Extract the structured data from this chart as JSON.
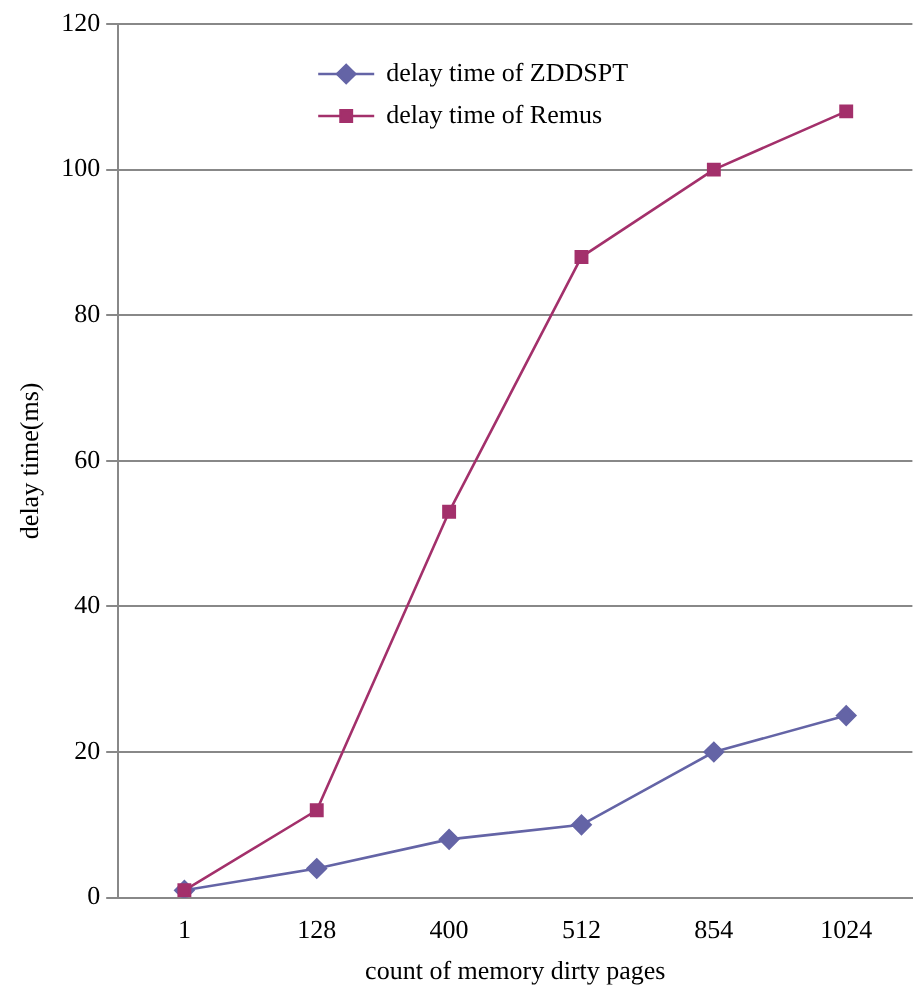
{
  "chart_data": {
    "type": "line",
    "xlabel": "count of memory dirty pages",
    "ylabel": "delay time(ms)",
    "categories": [
      "1",
      "128",
      "400",
      "512",
      "854",
      "1024"
    ],
    "series": [
      {
        "name": "delay time of ZDDSPT",
        "color": "#6464a6",
        "marker": "diamond",
        "values": [
          1,
          4,
          8,
          10,
          20,
          25
        ]
      },
      {
        "name": "delay time of Remus",
        "color": "#a3306b",
        "marker": "square",
        "values": [
          1,
          12,
          53,
          88,
          100,
          108
        ]
      }
    ],
    "ylim": [
      0,
      120
    ],
    "yticks": [
      0,
      20,
      40,
      60,
      80,
      100,
      120
    ],
    "grid": "y",
    "legend": "top",
    "line_style": "solid"
  }
}
